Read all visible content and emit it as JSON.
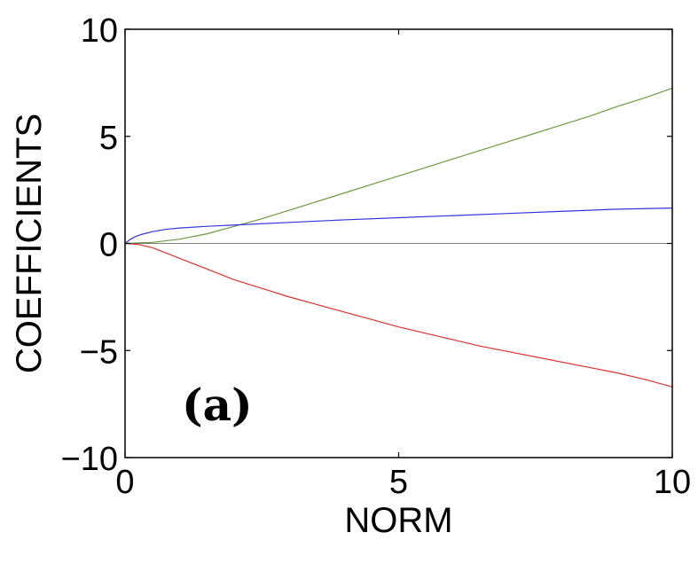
{
  "chart_data": {
    "type": "line",
    "xlabel": "NORM",
    "ylabel": "COEFFICIENTS",
    "xlim": [
      0,
      10
    ],
    "ylim": [
      -10,
      10
    ],
    "x_ticks": [
      "0",
      "5",
      "10"
    ],
    "y_ticks": [
      "10",
      "5",
      "0",
      "−5",
      "−10"
    ],
    "panel_label": "(a)",
    "grid": false,
    "series": [
      {
        "color": "#6b9a3f",
        "x": [
          0,
          0.5,
          1,
          1.5,
          2,
          2.5,
          3,
          3.5,
          4,
          4.5,
          5,
          5.5,
          6,
          6.5,
          7,
          7.5,
          8,
          8.5,
          9,
          9.5,
          10
        ],
        "y": [
          0,
          0.05,
          0.2,
          0.45,
          0.8,
          1.15,
          1.55,
          1.95,
          2.35,
          2.75,
          3.15,
          3.55,
          3.95,
          4.35,
          4.75,
          5.15,
          5.55,
          5.95,
          6.4,
          6.8,
          7.25
        ]
      },
      {
        "color": "#3333dd",
        "x": [
          0,
          0.1,
          0.2,
          0.3,
          0.5,
          0.75,
          1,
          1.5,
          2,
          3,
          4,
          5,
          6,
          7,
          8,
          9,
          10
        ],
        "y": [
          0,
          0.2,
          0.33,
          0.42,
          0.55,
          0.66,
          0.72,
          0.8,
          0.86,
          0.98,
          1.1,
          1.2,
          1.3,
          1.4,
          1.5,
          1.6,
          1.65
        ]
      },
      {
        "color": "#e03030",
        "x": [
          0,
          0.25,
          0.5,
          0.75,
          1,
          1.5,
          2,
          2.5,
          3,
          3.5,
          4,
          4.5,
          5,
          5.5,
          6,
          6.5,
          7,
          7.5,
          8,
          8.5,
          9,
          9.5,
          10
        ],
        "y": [
          0,
          -0.05,
          -0.2,
          -0.45,
          -0.7,
          -1.2,
          -1.7,
          -2.1,
          -2.5,
          -2.85,
          -3.2,
          -3.55,
          -3.9,
          -4.2,
          -4.5,
          -4.8,
          -5.05,
          -5.3,
          -5.55,
          -5.8,
          -6.05,
          -6.35,
          -6.7
        ]
      },
      {
        "color": "#555555",
        "x": [
          0,
          10
        ],
        "y": [
          0,
          0
        ]
      }
    ]
  }
}
